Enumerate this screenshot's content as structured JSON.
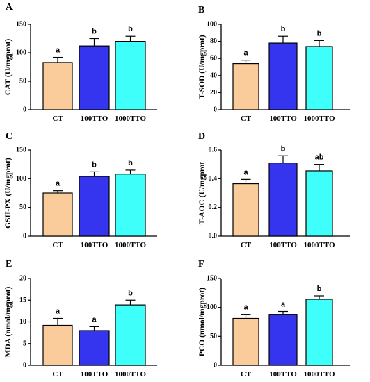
{
  "chart_data": [
    {
      "type": "bar",
      "panel": "A",
      "categories": [
        "CT",
        "100TTO",
        "1000TTO"
      ],
      "values": [
        83,
        112,
        120
      ],
      "errors": [
        9,
        13,
        9
      ],
      "sig": [
        "a",
        "b",
        "b"
      ],
      "ylabel": "CAT (U/mgprot)",
      "ylim": [
        0,
        150
      ],
      "yticks": [
        0,
        50,
        100,
        150
      ],
      "colors": [
        "#FACB9B",
        "#3535F0",
        "#3FFFFB"
      ]
    },
    {
      "type": "bar",
      "panel": "B",
      "categories": [
        "CT",
        "100TTO",
        "1000TTO"
      ],
      "values": [
        54,
        78,
        74
      ],
      "errors": [
        4,
        8,
        7
      ],
      "sig": [
        "a",
        "b",
        "b"
      ],
      "ylabel": "T-SOD (U/mgprot)",
      "ylim": [
        0,
        100
      ],
      "yticks": [
        0,
        20,
        40,
        60,
        80,
        100
      ],
      "colors": [
        "#FACB9B",
        "#3535F0",
        "#3FFFFB"
      ]
    },
    {
      "type": "bar",
      "panel": "C",
      "categories": [
        "CT",
        "100TTO",
        "1000TTO"
      ],
      "values": [
        75,
        104,
        108
      ],
      "errors": [
        4,
        8,
        7
      ],
      "sig": [
        "a",
        "b",
        "b"
      ],
      "ylabel": "GSH-PX (U/mgprot)",
      "ylim": [
        0,
        150
      ],
      "yticks": [
        0,
        50,
        100,
        150
      ],
      "colors": [
        "#FACB9B",
        "#3535F0",
        "#3FFFFB"
      ]
    },
    {
      "type": "bar",
      "panel": "D",
      "categories": [
        "CT",
        "100TTO",
        "1000TTO"
      ],
      "values": [
        0.365,
        0.51,
        0.455
      ],
      "errors": [
        0.03,
        0.05,
        0.045
      ],
      "sig": [
        "a",
        "b",
        "ab"
      ],
      "ylabel": "T-AOC (U/mgprot",
      "ylim": [
        0,
        0.6
      ],
      "yticks": [
        0.0,
        0.2,
        0.4,
        0.6
      ],
      "ytick_labels": [
        "0.0",
        "0.2",
        "0.4",
        "0.6"
      ],
      "colors": [
        "#FACB9B",
        "#3535F0",
        "#3FFFFB"
      ]
    },
    {
      "type": "bar",
      "panel": "E",
      "categories": [
        "CT",
        "100TTO",
        "1000TTO"
      ],
      "values": [
        9.2,
        8.0,
        13.9
      ],
      "errors": [
        1.6,
        0.9,
        1.1
      ],
      "sig": [
        "a",
        "a",
        "b"
      ],
      "ylabel": "MDA (nmol/mgprot)",
      "ylim": [
        0,
        20
      ],
      "yticks": [
        0,
        5,
        10,
        15,
        20
      ],
      "colors": [
        "#FACB9B",
        "#3535F0",
        "#3FFFFB"
      ]
    },
    {
      "type": "bar",
      "panel": "F",
      "categories": [
        "CT",
        "100TTO",
        "1000TTO"
      ],
      "values": [
        81,
        88,
        114
      ],
      "errors": [
        7,
        5,
        6
      ],
      "sig": [
        "a",
        "a",
        "b"
      ],
      "ylabel": "PCO (nmol/mgprot)",
      "ylim": [
        0,
        150
      ],
      "yticks": [
        0,
        50,
        100,
        150
      ],
      "colors": [
        "#FACB9B",
        "#3535F0",
        "#3FFFFB"
      ]
    }
  ]
}
